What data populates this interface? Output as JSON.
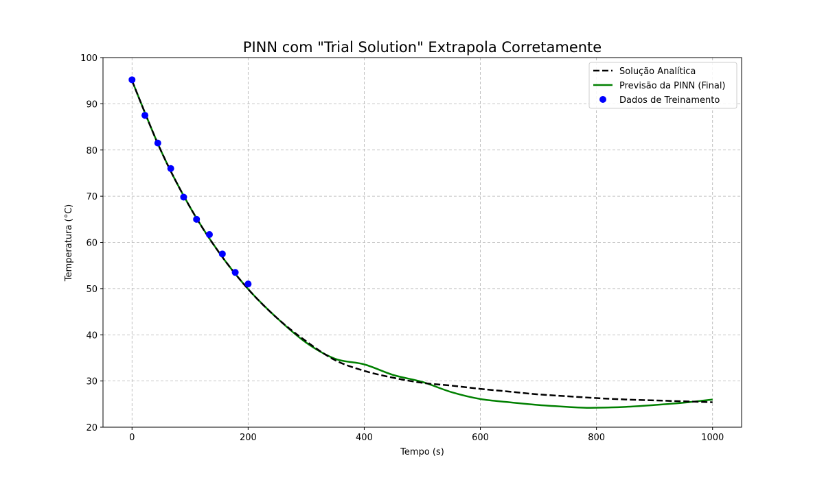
{
  "chart_data": {
    "type": "line",
    "title": "PINN com \"Trial Solution\" Extrapola Corretamente",
    "xlabel": "Tempo (s)",
    "ylabel": "Temperatura (°C)",
    "xlim": [
      -50,
      1050
    ],
    "ylim": [
      20,
      100
    ],
    "xticks": [
      0,
      200,
      400,
      600,
      800,
      1000
    ],
    "yticks": [
      20,
      30,
      40,
      50,
      60,
      70,
      80,
      90,
      100
    ],
    "grid": true,
    "legend_position": "top-right",
    "series": [
      {
        "name": "Solução Analítica",
        "kind": "line",
        "style": "dashed",
        "color": "#000000",
        "x": [
          0,
          50,
          100,
          150,
          200,
          250,
          300,
          350,
          400,
          450,
          500,
          550,
          600,
          650,
          700,
          750,
          800,
          850,
          900,
          950,
          1000
        ],
        "y": [
          95.0,
          79.8,
          67.6,
          57.8,
          49.9,
          43.6,
          38.6,
          34.5,
          32.2,
          30.7,
          29.6,
          29.0,
          28.3,
          27.7,
          27.1,
          26.7,
          26.3,
          26.0,
          25.8,
          25.6,
          25.4
        ]
      },
      {
        "name": "Previsão da PINN (Final)",
        "kind": "line",
        "style": "solid",
        "color": "#008000",
        "x": [
          0,
          50,
          100,
          150,
          200,
          250,
          300,
          350,
          400,
          450,
          500,
          550,
          600,
          650,
          700,
          750,
          790,
          850,
          900,
          950,
          1000
        ],
        "y": [
          95.0,
          79.8,
          67.6,
          57.8,
          49.9,
          43.6,
          38.3,
          34.8,
          33.6,
          31.3,
          29.8,
          27.6,
          26.1,
          25.4,
          24.8,
          24.4,
          24.2,
          24.4,
          24.8,
          25.3,
          26.0
        ]
      },
      {
        "name": "Dados de Treinamento",
        "kind": "scatter",
        "color": "#0000ff",
        "x": [
          0,
          22.2,
          44.4,
          66.7,
          88.9,
          111.1,
          133.3,
          155.6,
          177.8,
          200
        ],
        "y": [
          95.2,
          87.5,
          81.5,
          76.0,
          69.8,
          65.0,
          61.7,
          57.5,
          53.5,
          51.0
        ]
      }
    ]
  }
}
